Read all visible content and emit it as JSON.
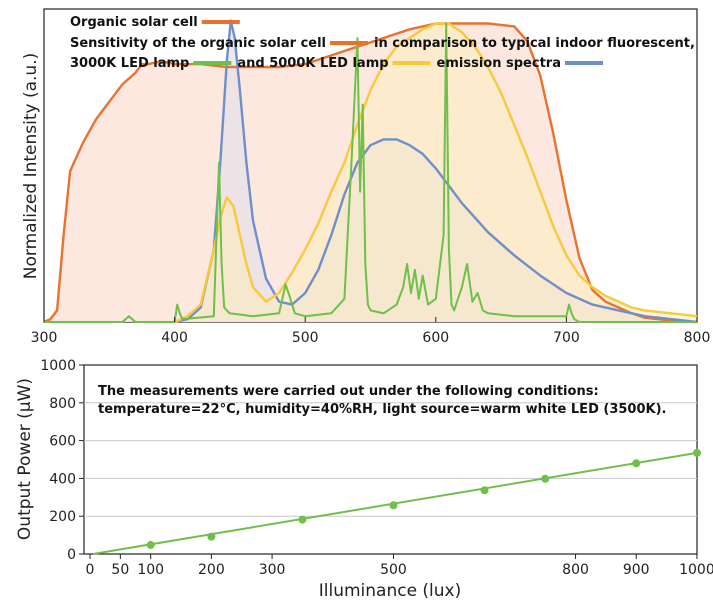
{
  "colors": {
    "organic": "#e8732e",
    "organic_fill": "#fde4da",
    "led3000": "#6fbf4a",
    "led5000": "#f7c93b",
    "led5000_fill": "#fbecc0",
    "fluorescent": "#6f8fc8",
    "fluorescent_fill": "#e6dfe8",
    "line2": "#6fbf4a"
  },
  "chart_data": [
    {
      "type": "line",
      "ylabel": "Normalized Intensity (a.u.)",
      "xlim": [
        300,
        800
      ],
      "ylim": [
        0,
        1.08
      ],
      "x_ticks": [
        300,
        400,
        500,
        600,
        700,
        800
      ],
      "legend": {
        "placement": "top-left",
        "lines": [
          [
            {
              "text": "Organic solar cell",
              "swatch": "organic"
            }
          ],
          [
            {
              "text": "Sensitivity of the organic solar cell",
              "swatch": "organic"
            },
            {
              "text": "in comparison to typical indoor fluorescent,",
              "swatch": null
            }
          ],
          [
            {
              "text": "3000K LED lamp",
              "swatch": "led3000"
            },
            {
              "text": "and 5000K LED lamp",
              "swatch": "led5000"
            },
            {
              "text": "emission spectra",
              "swatch": "fluorescent"
            }
          ]
        ]
      },
      "series": [
        {
          "key": "organic",
          "x": [
            300,
            305,
            310,
            315,
            320,
            330,
            340,
            350,
            360,
            370,
            375,
            380,
            390,
            400,
            420,
            440,
            460,
            480,
            500,
            520,
            540,
            560,
            580,
            600,
            620,
            640,
            660,
            670,
            680,
            690,
            700,
            710,
            720,
            730,
            740,
            750,
            760,
            780,
            800
          ],
          "y": [
            0.0,
            0.01,
            0.04,
            0.3,
            0.52,
            0.62,
            0.7,
            0.76,
            0.82,
            0.86,
            0.89,
            0.89,
            0.9,
            0.89,
            0.89,
            0.88,
            0.88,
            0.88,
            0.89,
            0.92,
            0.95,
            0.98,
            1.01,
            1.03,
            1.03,
            1.03,
            1.02,
            0.97,
            0.85,
            0.65,
            0.42,
            0.22,
            0.11,
            0.07,
            0.05,
            0.03,
            0.015,
            0.005,
            0.0
          ]
        },
        {
          "key": "fluorescent",
          "x": [
            400,
            410,
            420,
            430,
            435,
            440,
            443,
            446,
            450,
            455,
            460,
            470,
            480,
            490,
            500,
            510,
            520,
            530,
            540,
            550,
            560,
            570,
            580,
            590,
            600,
            610,
            620,
            640,
            660,
            680,
            700,
            720,
            740,
            760,
            780,
            800
          ],
          "y": [
            0.0,
            0.01,
            0.05,
            0.25,
            0.55,
            0.9,
            1.04,
            0.98,
            0.8,
            0.55,
            0.35,
            0.15,
            0.07,
            0.06,
            0.1,
            0.18,
            0.3,
            0.44,
            0.55,
            0.61,
            0.63,
            0.63,
            0.61,
            0.58,
            0.53,
            0.47,
            0.41,
            0.31,
            0.23,
            0.16,
            0.1,
            0.06,
            0.04,
            0.02,
            0.01,
            0.0
          ]
        },
        {
          "key": "led5000",
          "x": [
            400,
            410,
            420,
            430,
            435,
            440,
            445,
            450,
            455,
            460,
            470,
            480,
            490,
            500,
            510,
            520,
            530,
            540,
            550,
            560,
            570,
            580,
            590,
            600,
            610,
            620,
            630,
            640,
            650,
            660,
            670,
            680,
            690,
            700,
            710,
            720,
            730,
            740,
            750,
            760,
            780,
            800
          ],
          "y": [
            0.0,
            0.02,
            0.06,
            0.25,
            0.36,
            0.43,
            0.4,
            0.3,
            0.2,
            0.12,
            0.07,
            0.1,
            0.17,
            0.25,
            0.34,
            0.45,
            0.55,
            0.68,
            0.8,
            0.89,
            0.95,
            0.98,
            1.01,
            1.03,
            1.03,
            1.0,
            0.95,
            0.88,
            0.79,
            0.68,
            0.57,
            0.45,
            0.33,
            0.23,
            0.16,
            0.12,
            0.09,
            0.07,
            0.05,
            0.04,
            0.03,
            0.02
          ]
        },
        {
          "key": "led3000",
          "x": [
            300,
            360,
            365,
            370,
            400,
            402,
            404,
            406,
            430,
            434,
            436,
            438,
            442,
            460,
            480,
            485,
            488,
            492,
            500,
            520,
            530,
            536,
            540,
            542,
            544,
            546,
            548,
            550,
            560,
            570,
            575,
            578,
            581,
            584,
            587,
            590,
            594,
            600,
            606,
            608,
            610,
            612,
            614,
            620,
            624,
            628,
            632,
            636,
            640,
            660,
            680,
            700,
            702,
            704,
            706,
            710,
            800
          ],
          "y": [
            0.0,
            0.0,
            0.02,
            0.0,
            0.0,
            0.06,
            0.03,
            0.01,
            0.02,
            0.55,
            0.2,
            0.05,
            0.03,
            0.02,
            0.03,
            0.13,
            0.09,
            0.03,
            0.02,
            0.03,
            0.08,
            0.6,
            0.98,
            0.45,
            0.75,
            0.2,
            0.06,
            0.04,
            0.03,
            0.06,
            0.12,
            0.2,
            0.1,
            0.18,
            0.08,
            0.16,
            0.06,
            0.08,
            0.3,
            1.03,
            0.25,
            0.06,
            0.04,
            0.12,
            0.2,
            0.07,
            0.1,
            0.04,
            0.03,
            0.02,
            0.02,
            0.02,
            0.06,
            0.03,
            0.01,
            0.0,
            0.0
          ]
        }
      ]
    },
    {
      "type": "line",
      "xlabel": "Illuminance (lux)",
      "ylabel": "Output Power (µW)",
      "xlim": [
        0,
        1000
      ],
      "ylim": [
        0,
        1000
      ],
      "x_ticks": [
        0,
        50,
        100,
        200,
        300,
        500,
        800,
        900,
        1000
      ],
      "y_ticks": [
        0,
        200,
        400,
        600,
        800,
        1000
      ],
      "annotation": [
        "The measurements were carried out under the following conditions:",
        "temperature=22°C, humidity=40%RH, light source=warm white LED (3500K)."
      ],
      "series": [
        {
          "key": "line2",
          "x": [
            100,
            200,
            350,
            500,
            650,
            750,
            900,
            1000
          ],
          "y": [
            48,
            92,
            182,
            258,
            337,
            398,
            480,
            535
          ]
        }
      ]
    }
  ]
}
